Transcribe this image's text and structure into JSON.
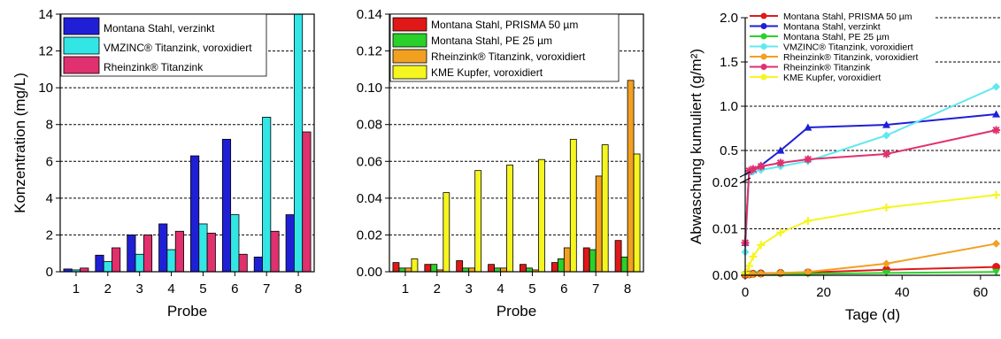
{
  "chart_data": [
    {
      "type": "bar",
      "xlabel": "Probe",
      "ylabel": "Konzentration (mg/L)",
      "ylim": [
        0,
        14
      ],
      "yticks": [
        "0",
        "2",
        "4",
        "6",
        "8",
        "10",
        "12",
        "14"
      ],
      "grid": "dashed horizontal at 2,4,...,14",
      "legend_position": "top-left",
      "categories": [
        "1",
        "2",
        "3",
        "4",
        "5",
        "6",
        "7",
        "8"
      ],
      "series": [
        {
          "name": "Montana Stahl, verzinkt",
          "color": "#1f1fd6",
          "values": [
            0.15,
            0.9,
            2.0,
            2.6,
            6.3,
            7.2,
            0.8,
            3.1
          ]
        },
        {
          "name": "VMZINC® Titanzink, voroxidiert",
          "color": "#33e6e6",
          "values": [
            0.1,
            0.55,
            0.95,
            1.2,
            2.6,
            3.1,
            8.4,
            14.0
          ]
        },
        {
          "name": "Rheinzink® Titanzink",
          "color": "#e0306e",
          "values": [
            0.2,
            1.3,
            2.0,
            2.2,
            2.1,
            0.95,
            2.2,
            7.6
          ]
        }
      ]
    },
    {
      "type": "bar",
      "xlabel": "Probe",
      "ylabel": "",
      "ylim": [
        0,
        0.14
      ],
      "yticks": [
        "0.00",
        "0.02",
        "0.04",
        "0.06",
        "0.08",
        "0.10",
        "0.12",
        "0.14"
      ],
      "grid": "dashed horizontal",
      "legend_position": "top-left",
      "categories": [
        "1",
        "2",
        "3",
        "4",
        "5",
        "6",
        "7",
        "8"
      ],
      "series": [
        {
          "name": "Montana Stahl, PRISMA 50 µm",
          "color": "#e01818",
          "values": [
            0.005,
            0.004,
            0.006,
            0.004,
            0.004,
            0.005,
            0.013,
            0.017
          ]
        },
        {
          "name": "Montana Stahl, PE 25 µm",
          "color": "#2ad12a",
          "values": [
            0.002,
            0.004,
            0.002,
            0.002,
            0.002,
            0.007,
            0.012,
            0.008
          ]
        },
        {
          "name": "Rheinzink® Titanzink, voroxidiert",
          "color": "#f2a020",
          "values": [
            0.002,
            0.001,
            0.002,
            0.002,
            0.001,
            0.013,
            0.052,
            0.104
          ]
        },
        {
          "name": "KME Kupfer, voroxidiert",
          "color": "#f5f520",
          "values": [
            0.007,
            0.043,
            0.055,
            0.058,
            0.061,
            0.072,
            0.069,
            0.064
          ]
        }
      ]
    },
    {
      "type": "line",
      "xlabel": "Tage (d)",
      "ylabel": "Abwaschung kumuliert (g/m²)",
      "xlim": [
        0,
        65
      ],
      "xticks": [
        "0",
        "20",
        "40",
        "60"
      ],
      "ylim_lower": [
        0,
        0.02
      ],
      "ylim_upper": [
        0.25,
        2.0
      ],
      "yticks_lower": [
        "0.00",
        "0.01"
      ],
      "yticks_upper": [
        "0.02",
        "0.5",
        "1.0",
        "1.5",
        "2.0"
      ],
      "axis_break": true,
      "legend_position": "top",
      "series": [
        {
          "name": "Montana Stahl, PRISMA 50 µm",
          "color": "#e01818",
          "marker": "circle",
          "x": [
            0,
            1,
            2,
            4,
            9,
            16,
            36,
            64
          ],
          "y": [
            0.0001,
            0.0002,
            0.0003,
            0.0004,
            0.0005,
            0.0006,
            0.0012,
            0.0018
          ]
        },
        {
          "name": "Montana Stahl, verzinkt",
          "color": "#1f1fd6",
          "marker": "triangle-up",
          "x": [
            0,
            1,
            2,
            4,
            9,
            16,
            36,
            64
          ],
          "y": [
            0.007,
            0.26,
            0.28,
            0.33,
            0.5,
            0.76,
            0.79,
            0.91
          ]
        },
        {
          "name": "Montana Stahl, PE 25 µm",
          "color": "#2ad12a",
          "marker": "triangle-down",
          "x": [
            0,
            1,
            2,
            4,
            9,
            16,
            36,
            64
          ],
          "y": [
            0.0001,
            0.0001,
            0.0002,
            0.0002,
            0.0003,
            0.0003,
            0.0005,
            0.0007
          ]
        },
        {
          "name": "VMZINC® Titanzink, voroxidiert",
          "color": "#5fe8f2",
          "marker": "diamond",
          "x": [
            0,
            1,
            2,
            4,
            9,
            16,
            36,
            64
          ],
          "y": [
            0.005,
            0.25,
            0.26,
            0.28,
            0.32,
            0.38,
            0.67,
            1.22
          ]
        },
        {
          "name": "Rheinzink® Titanzink, voroxidiert",
          "color": "#f2a020",
          "marker": "diamond",
          "x": [
            0,
            1,
            2,
            4,
            9,
            16,
            36,
            64
          ],
          "y": [
            0.0001,
            0.0002,
            0.0002,
            0.0003,
            0.0005,
            0.0007,
            0.0025,
            0.0068
          ]
        },
        {
          "name": "Rheinzink® Titanzink",
          "color": "#e0306e",
          "marker": "asterisk",
          "x": [
            0,
            1,
            2,
            4,
            9,
            16,
            36,
            64
          ],
          "y": [
            0.007,
            0.27,
            0.29,
            0.32,
            0.36,
            0.4,
            0.46,
            0.73
          ]
        },
        {
          "name": "KME Kupfer, voroxidiert",
          "color": "#f5f520",
          "marker": "cross",
          "x": [
            0,
            1,
            2,
            4,
            9,
            16,
            36,
            64
          ],
          "y": [
            0.0005,
            0.002,
            0.004,
            0.0065,
            0.0092,
            0.0117,
            0.0146,
            0.0173
          ]
        }
      ]
    }
  ]
}
